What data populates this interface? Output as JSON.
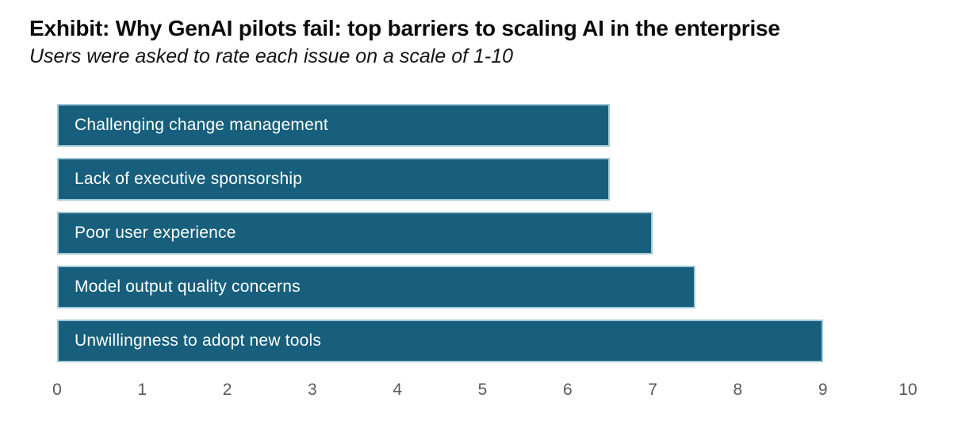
{
  "header": {
    "title": "Exhibit: Why GenAI pilots fail: top barriers to scaling AI in the enterprise",
    "subtitle": "Users were asked to rate each issue on a scale of 1-10"
  },
  "chart_data": {
    "type": "bar",
    "orientation": "horizontal",
    "title": "Exhibit: Why GenAI pilots fail: top barriers to scaling AI in the enterprise",
    "subtitle": "Users were asked to rate each issue on a scale of 1-10",
    "categories": [
      "Challenging change management",
      "Lack of executive sponsorship",
      "Poor user experience",
      "Model output quality concerns",
      "Unwillingness to adopt new tools"
    ],
    "values": [
      6.5,
      6.5,
      7,
      7.5,
      9
    ],
    "xlabel": "",
    "ylabel": "",
    "xlim": [
      0,
      10
    ],
    "xticks": [
      0,
      1,
      2,
      3,
      4,
      5,
      6,
      7,
      8,
      9,
      10
    ],
    "grid": false,
    "legend": false,
    "bar_color": "#175f7d",
    "bar_border_color": "#a2c8d7",
    "bar_label_color": "#ffffff",
    "tick_label_color": "#595959"
  }
}
